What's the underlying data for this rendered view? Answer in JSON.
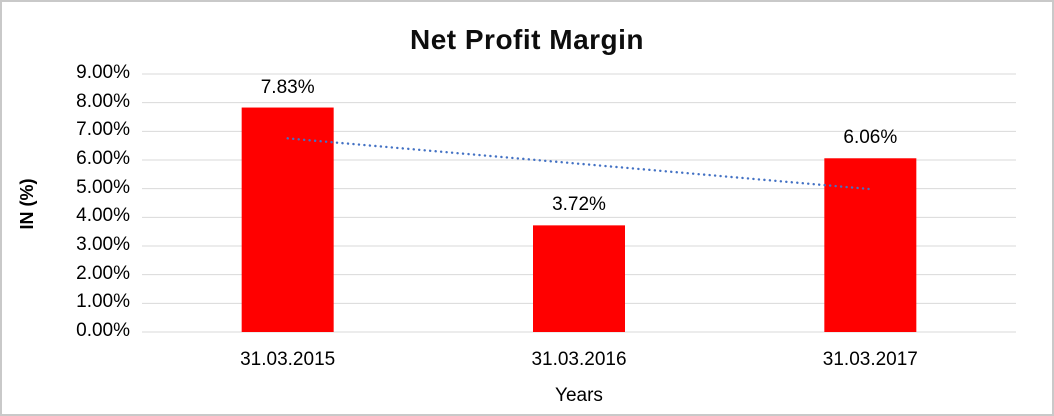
{
  "chart_data": {
    "type": "bar",
    "title": "Net Profit Margin",
    "xlabel": "Years",
    "ylabel": "IN (%)",
    "categories": [
      "31.03.2015",
      "31.03.2016",
      "31.03.2017"
    ],
    "values": [
      7.83,
      3.72,
      6.06
    ],
    "data_labels": [
      "7.83%",
      "3.72%",
      "6.06%"
    ],
    "y_tick_labels": [
      "0.00%",
      "1.00%",
      "2.00%",
      "3.00%",
      "4.00%",
      "5.00%",
      "6.00%",
      "7.00%",
      "8.00%",
      "9.00%"
    ],
    "ylim": [
      0,
      9
    ],
    "grid": true,
    "legend": "none",
    "bar_color": "#FF0000",
    "trendline": {
      "type": "linear",
      "style": "dotted",
      "color": "#4472C4"
    },
    "gridline_color": "#D9D9D9",
    "text_color": "#000000"
  }
}
